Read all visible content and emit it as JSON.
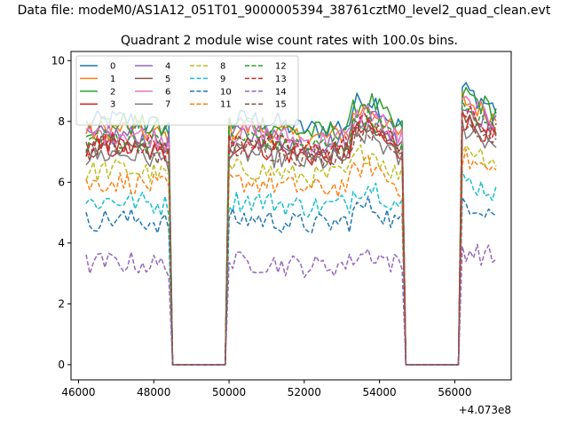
{
  "figure": {
    "title": "Data file: modeM0/AS1A12_051T01_9000005394_38761cztM0_level2_quad_clean.evt"
  },
  "chart_data": {
    "type": "line",
    "title": "Quadrant 2 module wise count rates with 100.0s bins.",
    "xlabel": "",
    "ylabel": "",
    "offset_label": "+4.073e8",
    "xlim": [
      45800,
      57500
    ],
    "ylim": [
      -0.5,
      10.3
    ],
    "xticks": [
      46000,
      48000,
      50000,
      52000,
      54000,
      56000
    ],
    "xtick_labels": [
      "46000",
      "48000",
      "50000",
      "52000",
      "54000",
      "56000"
    ],
    "yticks": [
      0,
      2,
      4,
      6,
      8,
      10
    ],
    "ytick_labels": [
      "0",
      "2",
      "4",
      "6",
      "8",
      "10"
    ],
    "grid": false,
    "legend_placement": "top-left",
    "legend_columns": 4,
    "time_range": [
      46200,
      57150
    ],
    "bin_seconds": 100,
    "gaps": [
      [
        48500,
        49900
      ],
      [
        54700,
        56100
      ]
    ],
    "series": [
      {
        "name": "0",
        "level": 7.9,
        "style": "solid",
        "color": "#1f77b4"
      },
      {
        "name": "1",
        "level": 7.6,
        "style": "solid",
        "color": "#ff7f0e"
      },
      {
        "name": "2",
        "level": 7.8,
        "style": "solid",
        "color": "#2ca02c"
      },
      {
        "name": "3",
        "level": 7.0,
        "style": "solid",
        "color": "#d62728"
      },
      {
        "name": "4",
        "level": 7.4,
        "style": "solid",
        "color": "#9467bd"
      },
      {
        "name": "5",
        "level": 7.1,
        "style": "solid",
        "color": "#8c564b"
      },
      {
        "name": "6",
        "level": 7.5,
        "style": "solid",
        "color": "#e377c2"
      },
      {
        "name": "7",
        "level": 6.8,
        "style": "solid",
        "color": "#7f7f7f"
      },
      {
        "name": "8",
        "level": 6.3,
        "style": "dashed",
        "color": "#bcbd22"
      },
      {
        "name": "9",
        "level": 5.3,
        "style": "dashed",
        "color": "#17becf"
      },
      {
        "name": "10",
        "level": 4.7,
        "style": "dashed",
        "color": "#1f77b4"
      },
      {
        "name": "11",
        "level": 5.9,
        "style": "dashed",
        "color": "#ff7f0e"
      },
      {
        "name": "12",
        "level": 7.3,
        "style": "dashed",
        "color": "#2ca02c"
      },
      {
        "name": "13",
        "level": 7.2,
        "style": "dashed",
        "color": "#d62728"
      },
      {
        "name": "14",
        "level": 3.3,
        "style": "dashed",
        "color": "#9467bd"
      },
      {
        "name": "15",
        "level": 7.0,
        "style": "dashed",
        "color": "#8c564b"
      }
    ]
  }
}
